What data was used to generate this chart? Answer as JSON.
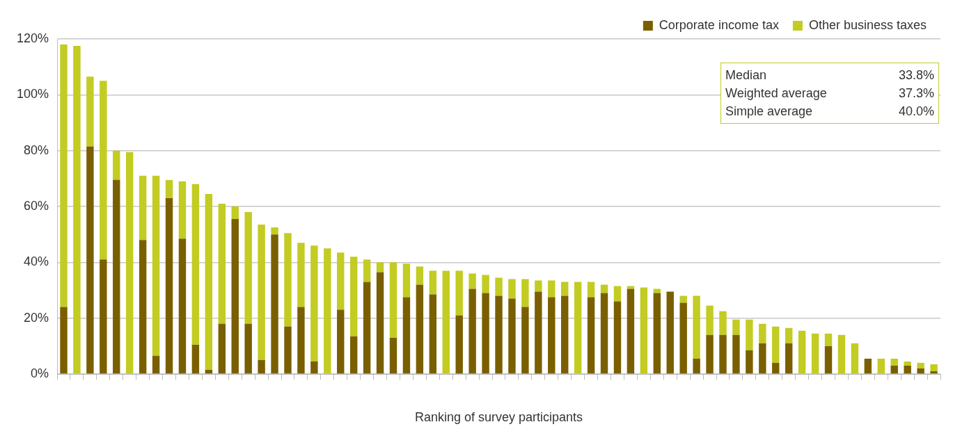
{
  "chart_data": {
    "type": "bar",
    "stacked": true,
    "xlabel": "Ranking of survey participants",
    "categories": [
      null,
      null,
      null,
      null,
      null,
      null,
      null,
      null,
      null,
      null,
      null,
      null,
      null,
      null,
      null,
      null,
      null,
      null,
      null,
      null,
      null,
      null,
      null,
      null,
      null,
      null,
      null,
      null,
      null,
      null,
      null,
      null,
      null,
      null,
      null,
      null,
      null,
      null,
      null,
      null,
      null,
      null,
      null,
      null,
      null,
      null,
      null,
      null,
      null,
      null,
      null,
      null,
      null,
      null,
      null,
      null,
      null,
      null,
      null,
      null,
      null,
      null,
      null,
      null,
      null,
      null,
      null
    ],
    "series": [
      {
        "name": "Corporate income tax",
        "color": "#7a5f00",
        "values": [
          24,
          0,
          81.5,
          41,
          69.5,
          0,
          48,
          6.5,
          63,
          48.5,
          10.5,
          1.5,
          18,
          55.5,
          18,
          5,
          50,
          17,
          24,
          4.5,
          0,
          23,
          13.5,
          33,
          36.5,
          13,
          27.5,
          32,
          28.5,
          0,
          21,
          30.5,
          29,
          28,
          27,
          24,
          29.5,
          27.5,
          28,
          0,
          27.5,
          29,
          26,
          30.5,
          0,
          29,
          29.5,
          25.5,
          5.5,
          14,
          14,
          14,
          8.5,
          11,
          4,
          11,
          0,
          0,
          10,
          0,
          0,
          5.5,
          0,
          3,
          3,
          2,
          1
        ]
      },
      {
        "name": "Other business taxes",
        "color": "#c2cc22",
        "values": [
          94,
          117.5,
          25,
          64,
          10.5,
          79.5,
          23,
          64.5,
          6.5,
          20.5,
          57.5,
          63,
          43,
          4.5,
          40,
          48.5,
          2.5,
          33.5,
          23,
          41.5,
          45,
          20.5,
          28.5,
          8,
          3.5,
          27,
          12,
          6.5,
          8.5,
          37,
          16,
          5.5,
          6.5,
          6.5,
          7,
          10,
          4,
          6,
          5,
          33,
          5.5,
          3,
          5.5,
          1,
          31,
          1.5,
          0,
          2.5,
          22.5,
          10.5,
          8.5,
          5.5,
          11,
          7,
          13,
          5.5,
          15.5,
          14.5,
          4.5,
          14,
          11,
          0,
          5.5,
          2.5,
          1.5,
          2,
          2.5
        ]
      }
    ],
    "ylim": [
      0,
      120
    ],
    "yticks": [
      {
        "value": 0,
        "label": "0%"
      },
      {
        "value": 20,
        "label": "20%"
      },
      {
        "value": 40,
        "label": "40%"
      },
      {
        "value": 60,
        "label": "60%"
      },
      {
        "value": 80,
        "label": "80%"
      },
      {
        "value": 100,
        "label": "100%"
      },
      {
        "value": 120,
        "label": "120%"
      }
    ],
    "grid": "y",
    "legend": "top right",
    "annotations": [
      "Median 33.8%",
      "Weighted average 37.3%",
      "Simple average 40.0%"
    ]
  }
}
